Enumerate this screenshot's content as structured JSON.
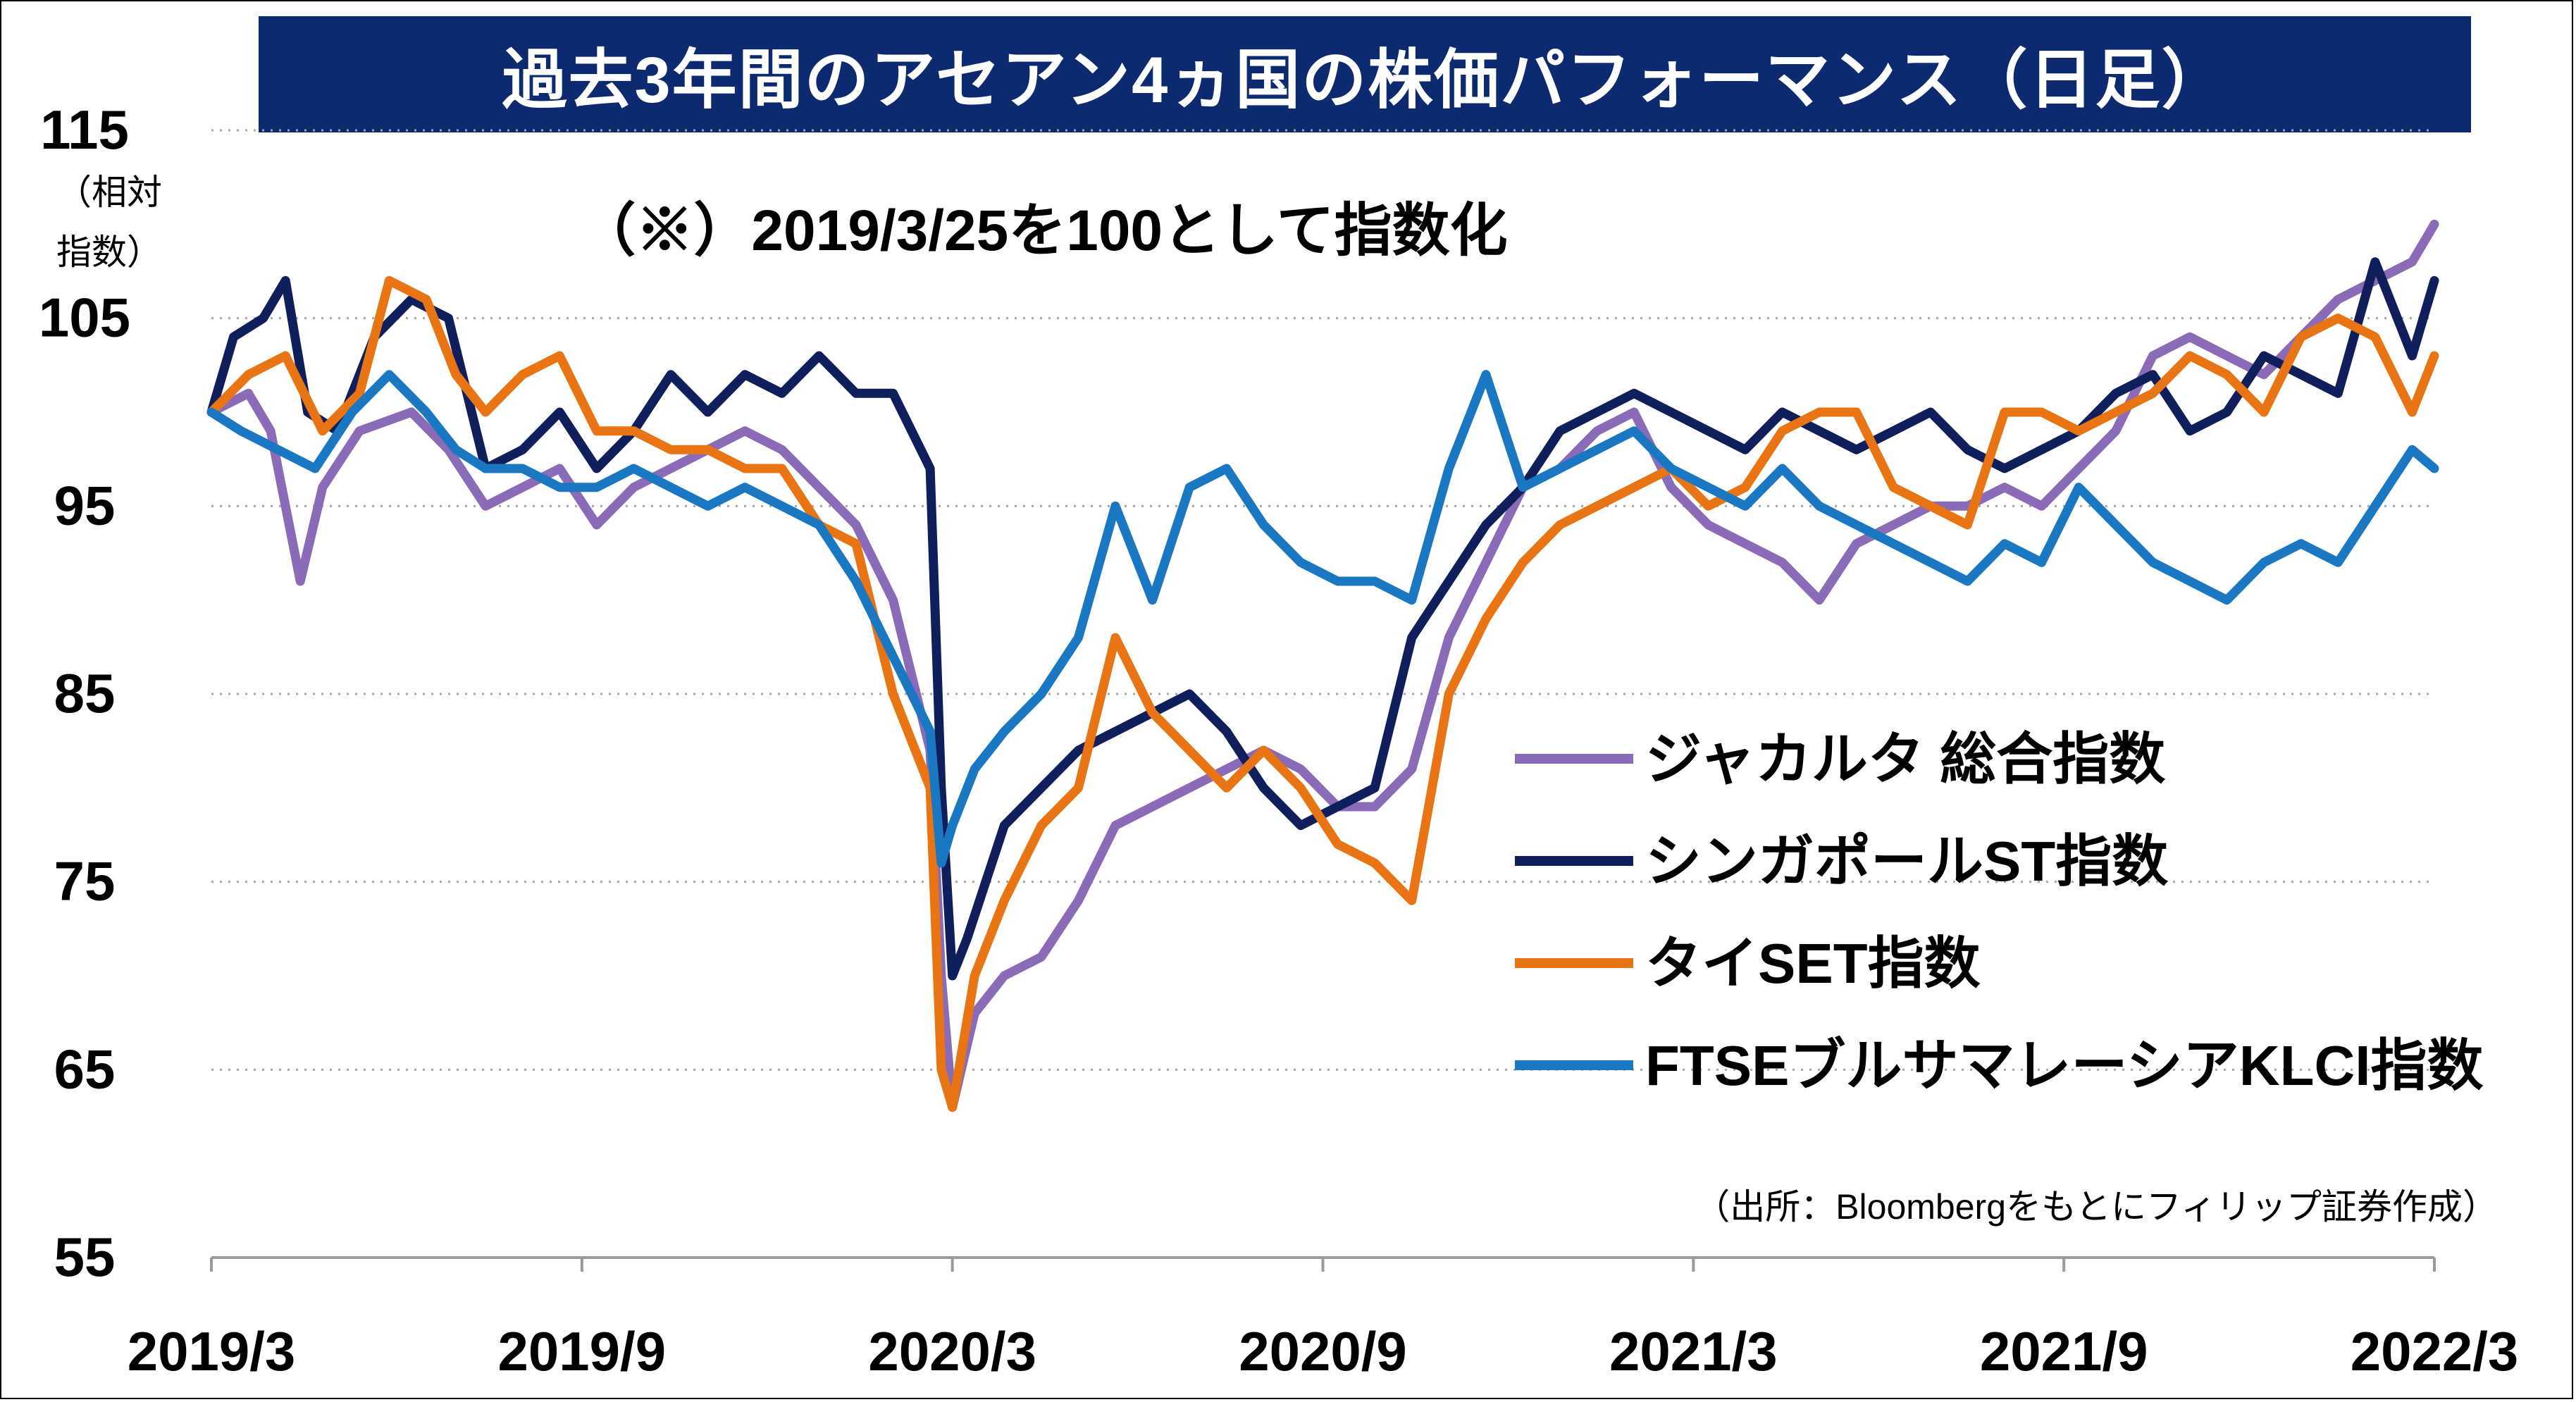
{
  "title": "過去3年間のアセアン4ヵ国の株価パフォーマンス（日足）",
  "annotation": "（※）2019/3/25を100として指数化",
  "source": "（出所：Bloombergをもとにフィリップ証券作成）",
  "chart_data": {
    "type": "line",
    "ylabel_lines": [
      "（相対",
      "指数）"
    ],
    "ylim": [
      55,
      115
    ],
    "yticks": [
      55,
      65,
      75,
      85,
      95,
      105,
      115
    ],
    "x_tick_labels": [
      "2019/3",
      "2019/9",
      "2020/3",
      "2020/9",
      "2021/3",
      "2021/9",
      "2022/3"
    ],
    "x_range": [
      2019.23,
      2022.23
    ],
    "x_ticks": [
      2019.23,
      2019.73,
      2020.23,
      2020.73,
      2021.23,
      2021.73,
      2022.23
    ],
    "grid": "horizontal dotted",
    "legend_position": "center-right",
    "series": [
      {
        "name": "ジャカルタ 総合指数",
        "color": "#8a6bb8",
        "x": [
          2019.23,
          2019.28,
          2019.31,
          2019.35,
          2019.38,
          2019.43,
          2019.5,
          2019.55,
          2019.6,
          2019.65,
          2019.7,
          2019.75,
          2019.8,
          2019.85,
          2019.9,
          2019.95,
          2020.0,
          2020.05,
          2020.1,
          2020.15,
          2020.2,
          2020.215,
          2020.23,
          2020.26,
          2020.3,
          2020.35,
          2020.4,
          2020.45,
          2020.5,
          2020.55,
          2020.6,
          2020.65,
          2020.7,
          2020.75,
          2020.8,
          2020.85,
          2020.9,
          2020.95,
          2021.0,
          2021.05,
          2021.1,
          2021.15,
          2021.2,
          2021.25,
          2021.3,
          2021.35,
          2021.4,
          2021.45,
          2021.5,
          2021.55,
          2021.6,
          2021.65,
          2021.7,
          2021.75,
          2021.8,
          2021.85,
          2021.9,
          2021.95,
          2022.0,
          2022.05,
          2022.1,
          2022.15,
          2022.2,
          2022.23
        ],
        "y": [
          100,
          101,
          99,
          91,
          96,
          99,
          100,
          98,
          95,
          96,
          97,
          94,
          96,
          97,
          98,
          99,
          98,
          96,
          94,
          90,
          82,
          70,
          63,
          68,
          70,
          71,
          74,
          78,
          79,
          80,
          81,
          82,
          81,
          79,
          79,
          81,
          88,
          92,
          96,
          97,
          99,
          100,
          96,
          94,
          93,
          92,
          90,
          93,
          94,
          95,
          95,
          96,
          95,
          97,
          99,
          103,
          104,
          103,
          102,
          104,
          106,
          107,
          108,
          110
        ]
      },
      {
        "name": "シンガポールST指数",
        "color": "#0f1f5c",
        "x": [
          2019.23,
          2019.26,
          2019.3,
          2019.33,
          2019.36,
          2019.4,
          2019.45,
          2019.5,
          2019.55,
          2019.6,
          2019.65,
          2019.7,
          2019.75,
          2019.8,
          2019.85,
          2019.9,
          2019.95,
          2020.0,
          2020.05,
          2020.1,
          2020.15,
          2020.2,
          2020.215,
          2020.23,
          2020.25,
          2020.3,
          2020.35,
          2020.4,
          2020.45,
          2020.5,
          2020.55,
          2020.6,
          2020.65,
          2020.7,
          2020.75,
          2020.8,
          2020.85,
          2020.9,
          2020.95,
          2021.0,
          2021.05,
          2021.1,
          2021.15,
          2021.2,
          2021.25,
          2021.3,
          2021.35,
          2021.4,
          2021.45,
          2021.5,
          2021.55,
          2021.6,
          2021.65,
          2021.7,
          2021.75,
          2021.8,
          2021.85,
          2021.9,
          2021.95,
          2022.0,
          2022.05,
          2022.1,
          2022.15,
          2022.2,
          2022.23
        ],
        "y": [
          100,
          104,
          105,
          107,
          100,
          99,
          104,
          106,
          105,
          97,
          98,
          100,
          97,
          99,
          102,
          100,
          102,
          101,
          103,
          101,
          101,
          97,
          80,
          70,
          72,
          78,
          80,
          82,
          83,
          84,
          85,
          83,
          80,
          78,
          79,
          80,
          88,
          91,
          94,
          96,
          99,
          100,
          101,
          100,
          99,
          98,
          100,
          99,
          98,
          99,
          100,
          98,
          97,
          98,
          99,
          101,
          102,
          99,
          100,
          103,
          102,
          101,
          108,
          103,
          107
        ]
      },
      {
        "name": "タイSET指数",
        "color": "#e87414",
        "x": [
          2019.23,
          2019.28,
          2019.33,
          2019.38,
          2019.43,
          2019.47,
          2019.52,
          2019.56,
          2019.6,
          2019.65,
          2019.7,
          2019.75,
          2019.8,
          2019.85,
          2019.9,
          2019.95,
          2020.0,
          2020.05,
          2020.1,
          2020.15,
          2020.2,
          2020.215,
          2020.23,
          2020.26,
          2020.3,
          2020.35,
          2020.4,
          2020.45,
          2020.5,
          2020.55,
          2020.6,
          2020.65,
          2020.7,
          2020.75,
          2020.8,
          2020.85,
          2020.9,
          2020.95,
          2021.0,
          2021.05,
          2021.1,
          2021.15,
          2021.2,
          2021.25,
          2021.3,
          2021.35,
          2021.4,
          2021.45,
          2021.5,
          2021.55,
          2021.6,
          2021.65,
          2021.7,
          2021.75,
          2021.8,
          2021.85,
          2021.9,
          2021.95,
          2022.0,
          2022.05,
          2022.1,
          2022.15,
          2022.2,
          2022.23
        ],
        "y": [
          100,
          102,
          103,
          99,
          101,
          107,
          106,
          102,
          100,
          102,
          103,
          99,
          99,
          98,
          98,
          97,
          97,
          94,
          93,
          85,
          80,
          65,
          63,
          70,
          74,
          78,
          80,
          88,
          84,
          82,
          80,
          82,
          80,
          77,
          76,
          74,
          85,
          89,
          92,
          94,
          95,
          96,
          97,
          95,
          96,
          99,
          100,
          100,
          96,
          95,
          94,
          100,
          100,
          99,
          100,
          101,
          103,
          102,
          100,
          104,
          105,
          104,
          100,
          103
        ]
      },
      {
        "name": "FTSEブルサマレーシアKLCI指数",
        "color": "#1a78c2",
        "x": [
          2019.23,
          2019.27,
          2019.32,
          2019.37,
          2019.42,
          2019.47,
          2019.52,
          2019.56,
          2019.6,
          2019.65,
          2019.7,
          2019.75,
          2019.8,
          2019.85,
          2019.9,
          2019.95,
          2020.0,
          2020.05,
          2020.1,
          2020.15,
          2020.2,
          2020.215,
          2020.23,
          2020.26,
          2020.3,
          2020.35,
          2020.4,
          2020.45,
          2020.5,
          2020.55,
          2020.6,
          2020.65,
          2020.7,
          2020.75,
          2020.8,
          2020.85,
          2020.9,
          2020.95,
          2021.0,
          2021.05,
          2021.1,
          2021.15,
          2021.2,
          2021.25,
          2021.3,
          2021.35,
          2021.4,
          2021.45,
          2021.5,
          2021.55,
          2021.6,
          2021.65,
          2021.7,
          2021.75,
          2021.8,
          2021.85,
          2021.9,
          2021.95,
          2022.0,
          2022.05,
          2022.1,
          2022.15,
          2022.2,
          2022.23
        ],
        "y": [
          100,
          99,
          98,
          97,
          100,
          102,
          100,
          98,
          97,
          97,
          96,
          96,
          97,
          96,
          95,
          96,
          95,
          94,
          91,
          87,
          83,
          76,
          78,
          81,
          83,
          85,
          88,
          95,
          90,
          96,
          97,
          94,
          92,
          91,
          91,
          90,
          97,
          102,
          96,
          97,
          98,
          99,
          97,
          96,
          95,
          97,
          95,
          94,
          93,
          92,
          91,
          93,
          92,
          96,
          94,
          92,
          91,
          90,
          92,
          93,
          92,
          95,
          98,
          97
        ]
      }
    ]
  }
}
